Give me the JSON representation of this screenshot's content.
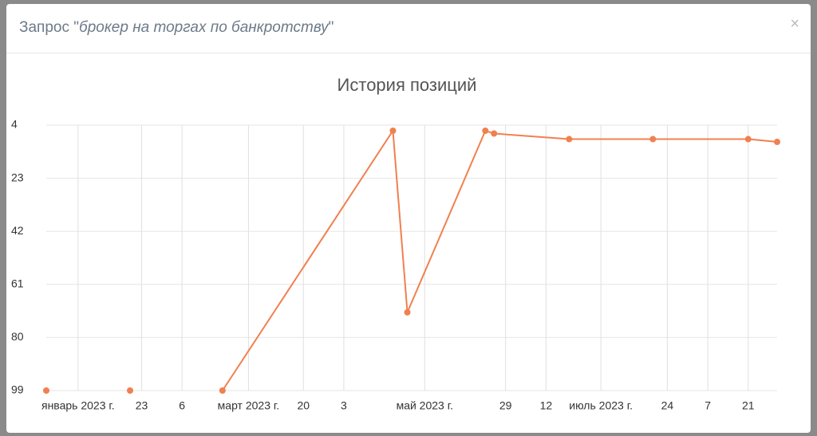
{
  "modal": {
    "title_prefix": "Запрос \"",
    "query": "брокер на торгах по банкротству",
    "title_suffix": "\"",
    "close": "×"
  },
  "chart_data": {
    "type": "line",
    "title": "История позиций",
    "x": [
      "2022-12-21",
      null,
      "2023-01-19",
      null,
      "2023-02-20",
      "2023-04-20",
      "2023-04-25",
      "2023-05-22",
      "2023-05-25",
      "2023-06-20",
      "2023-07-19",
      "2023-08-21",
      "2023-08-31"
    ],
    "series": [
      {
        "name": "Позиция",
        "color": "#f0804f",
        "values": [
          99,
          null,
          99,
          null,
          99,
          6,
          71,
          6,
          7,
          9,
          9,
          9,
          10
        ]
      }
    ],
    "xlim": [
      "2022-12-21",
      "2023-08-31"
    ],
    "xticks": [
      {
        "value": "2023-01-01",
        "label": "январь 2023 г."
      },
      {
        "value": "2023-01-23",
        "label": "23"
      },
      {
        "value": "2023-02-06",
        "label": "6"
      },
      {
        "value": "2023-03-01",
        "label": "март 2023 г."
      },
      {
        "value": "2023-03-20",
        "label": "20"
      },
      {
        "value": "2023-04-03",
        "label": "3"
      },
      {
        "value": "2023-05-01",
        "label": "май 2023 г."
      },
      {
        "value": "2023-05-29",
        "label": "29"
      },
      {
        "value": "2023-06-12",
        "label": "12"
      },
      {
        "value": "2023-07-01",
        "label": "июль 2023 г."
      },
      {
        "value": "2023-07-24",
        "label": "24"
      },
      {
        "value": "2023-08-07",
        "label": "7"
      },
      {
        "value": "2023-08-21",
        "label": "21"
      }
    ],
    "ylim": [
      99,
      4
    ],
    "yticks": [
      4,
      23,
      42,
      61,
      80,
      99
    ],
    "grid": true
  }
}
